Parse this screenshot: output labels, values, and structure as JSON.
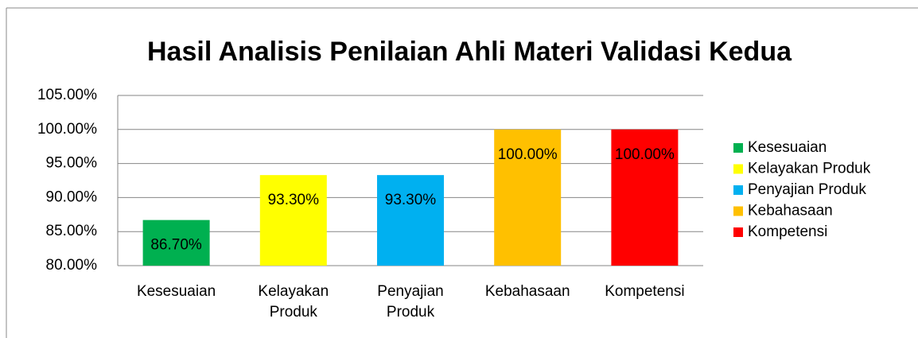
{
  "chart_data": {
    "type": "bar",
    "title": "Hasil Analisis Penilaian Ahli Materi Validasi Kedua",
    "categories": [
      "Kesesuaian",
      "Kelayakan Produk",
      "Penyajian Produk",
      "Kebahasaan",
      "Kompetensi"
    ],
    "values": [
      86.7,
      93.3,
      93.3,
      100,
      100
    ],
    "value_labels": [
      "86.70%",
      "93.30%",
      "93.30%",
      "100.00%",
      "100.00%"
    ],
    "colors": [
      "#00b050",
      "#ffff00",
      "#00b0f0",
      "#ffc000",
      "#ff0000"
    ],
    "ylim": [
      80,
      105
    ],
    "yticks": [
      {
        "value": 80,
        "label": "80.00%"
      },
      {
        "value": 85,
        "label": "85.00%"
      },
      {
        "value": 90,
        "label": "90.00%"
      },
      {
        "value": 95,
        "label": "95.00%"
      },
      {
        "value": 100,
        "label": "100.00%"
      },
      {
        "value": 105,
        "label": "105.00%"
      }
    ],
    "grid": true,
    "legend": "right"
  }
}
